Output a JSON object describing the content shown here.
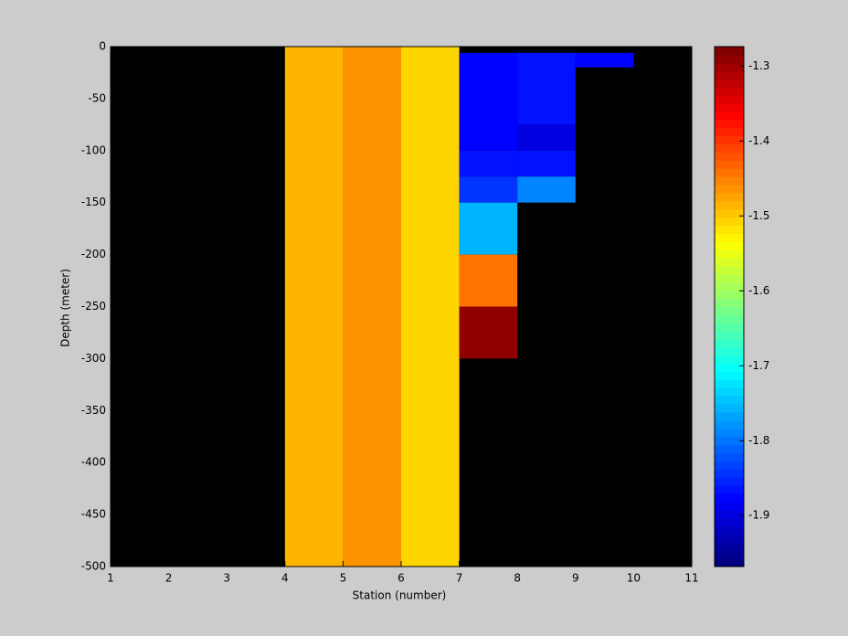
{
  "chart_data": {
    "type": "heatmap",
    "xlabel": "Station (number)",
    "ylabel": "Depth (meter)",
    "xlim": [
      1,
      11
    ],
    "xticks": [
      1,
      2,
      3,
      4,
      5,
      6,
      7,
      8,
      9,
      10,
      11
    ],
    "ylim": [
      -500,
      0
    ],
    "yticks": [
      0,
      -50,
      -100,
      -150,
      -200,
      -250,
      -300,
      -350,
      -400,
      -450,
      -500
    ],
    "colormap": "jet",
    "clim": [
      -1.968,
      -1.274
    ],
    "cticks": [
      -1.9,
      -1.8,
      -1.7,
      -1.6,
      -1.5,
      -1.4,
      -1.3
    ],
    "background": "#000000",
    "cells": [
      {
        "x0": 4,
        "x1": 5,
        "y0": -500,
        "y1": 0,
        "value": -1.49
      },
      {
        "x0": 5,
        "x1": 6,
        "y0": -500,
        "y1": 0,
        "value": -1.46
      },
      {
        "x0": 6,
        "x1": 7,
        "y0": -500,
        "y1": 0,
        "value": -1.51
      },
      {
        "x0": 7,
        "x1": 8,
        "y0": -100,
        "y1": -6,
        "value": -1.88
      },
      {
        "x0": 7,
        "x1": 8,
        "y0": -125,
        "y1": -100,
        "value": -1.86
      },
      {
        "x0": 7,
        "x1": 8,
        "y0": -150,
        "y1": -125,
        "value": -1.84
      },
      {
        "x0": 7,
        "x1": 8,
        "y0": -200,
        "y1": -150,
        "value": -1.76
      },
      {
        "x0": 7,
        "x1": 8,
        "y0": -250,
        "y1": -200,
        "value": -1.44
      },
      {
        "x0": 7,
        "x1": 8,
        "y0": -300,
        "y1": -250,
        "value": -1.29
      },
      {
        "x0": 8,
        "x1": 9,
        "y0": -75,
        "y1": -6,
        "value": -1.86
      },
      {
        "x0": 8,
        "x1": 9,
        "y0": -100,
        "y1": -75,
        "value": -1.9
      },
      {
        "x0": 8,
        "x1": 9,
        "y0": -125,
        "y1": -100,
        "value": -1.86
      },
      {
        "x0": 8,
        "x1": 9,
        "y0": -150,
        "y1": -125,
        "value": -1.79
      },
      {
        "x0": 9,
        "x1": 10,
        "y0": -20,
        "y1": -6,
        "value": -1.88
      }
    ]
  }
}
